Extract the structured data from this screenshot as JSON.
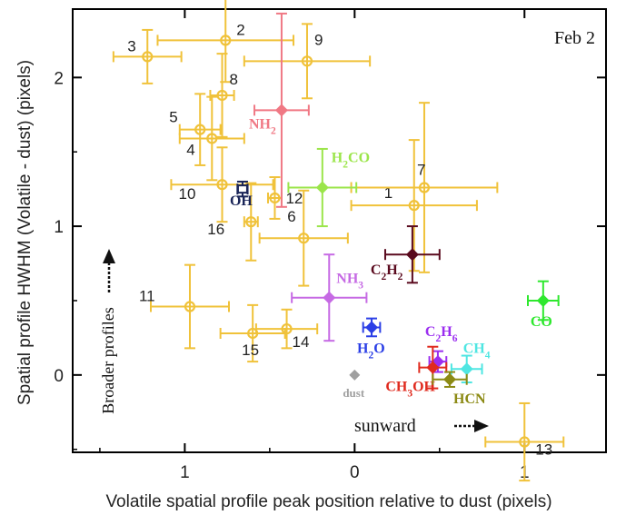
{
  "chart_data": {
    "type": "scatter",
    "panel_label": "Feb 2",
    "xlabel": "Volatile spatial profile peak position relative to dust (pixels)",
    "ylabel": "Spatial profile HWHM (Volatile - dust) (pixels)",
    "x_reversed": true,
    "xlim": [
      1.66,
      -1.48
    ],
    "ylim": [
      -0.52,
      2.46
    ],
    "x_ticks": [
      1,
      0,
      -1
    ],
    "x_tick_labels": [
      "1",
      "0",
      "1"
    ],
    "y_ticks": [
      0,
      1,
      2
    ],
    "y_tick_labels": [
      "0",
      "1",
      "2"
    ],
    "annotations": {
      "broader": "Broader profiles",
      "sunward": "sunward"
    },
    "numbered_points": [
      {
        "label": "1",
        "x": -0.35,
        "y": 1.14,
        "xerr": 0.37,
        "yerr": 0.44
      },
      {
        "label": "2",
        "x": 0.76,
        "y": 2.25,
        "xerr": 0.4,
        "yerr": 0.28
      },
      {
        "label": "3",
        "x": 1.22,
        "y": 2.14,
        "xerr": 0.2,
        "yerr": 0.18
      },
      {
        "label": "4",
        "x": 0.84,
        "y": 1.59,
        "xerr": 0.19,
        "yerr": 0.28
      },
      {
        "label": "5",
        "x": 0.91,
        "y": 1.65,
        "xerr": 0.12,
        "yerr": 0.24
      },
      {
        "label": "6",
        "x": 0.3,
        "y": 0.92,
        "xerr": 0.26,
        "yerr": 0.32
      },
      {
        "label": "7",
        "x": -0.41,
        "y": 1.26,
        "xerr": 0.43,
        "yerr": 0.57
      },
      {
        "label": "8",
        "x": 0.78,
        "y": 1.88,
        "xerr": 0.07,
        "yerr": 0.28
      },
      {
        "label": "9",
        "x": 0.28,
        "y": 2.11,
        "xerr": 0.37,
        "yerr": 0.25
      },
      {
        "label": "10",
        "x": 0.78,
        "y": 1.28,
        "xerr": 0.3,
        "yerr": 0.25
      },
      {
        "label": "11",
        "x": 0.97,
        "y": 0.46,
        "xerr": 0.23,
        "yerr": 0.28
      },
      {
        "label": "12",
        "x": 0.47,
        "y": 1.19,
        "xerr": 0.04,
        "yerr": 0.14
      },
      {
        "label": "13",
        "x": -1.0,
        "y": -0.45,
        "xerr": 0.23,
        "yerr": 0.26
      },
      {
        "label": "14",
        "x": 0.4,
        "y": 0.31,
        "xerr": 0.18,
        "yerr": 0.13
      },
      {
        "label": "15",
        "x": 0.6,
        "y": 0.28,
        "xerr": 0.19,
        "yerr": 0.19
      },
      {
        "label": "16",
        "x": 0.61,
        "y": 1.03,
        "xerr": 0.04,
        "yerr": 0.26
      }
    ],
    "molecules": [
      {
        "label": "NH2",
        "x": 0.43,
        "y": 1.78,
        "xerr": 0.16,
        "yerr": 0.65,
        "color": "#f07884"
      },
      {
        "label": "H2CO",
        "x": 0.19,
        "y": 1.26,
        "xerr": 0.2,
        "yerr": 0.26,
        "color": "#9be54a"
      },
      {
        "label": "OH",
        "x": 0.66,
        "y": 1.25,
        "xerr": 0.03,
        "yerr": 0.05,
        "color": "#1a2558"
      },
      {
        "label": "C2H2",
        "x": -0.34,
        "y": 0.81,
        "xerr": 0.16,
        "yerr": 0.19,
        "color": "#5a0a1e"
      },
      {
        "label": "NH3",
        "x": 0.15,
        "y": 0.52,
        "xerr": 0.22,
        "yerr": 0.29,
        "color": "#c66ae4"
      },
      {
        "label": "H2O",
        "x": -0.1,
        "y": 0.32,
        "xerr": 0.05,
        "yerr": 0.06,
        "color": "#2b3fe6"
      },
      {
        "label": "C2H6",
        "x": -0.49,
        "y": 0.09,
        "xerr": 0.05,
        "yerr": 0.07,
        "color": "#9b2ef0"
      },
      {
        "label": "CH3OH",
        "x": -0.46,
        "y": 0.05,
        "xerr": 0.08,
        "yerr": 0.14,
        "color": "#e02a1e"
      },
      {
        "label": "CH4",
        "x": -0.66,
        "y": 0.04,
        "xerr": 0.09,
        "yerr": 0.09,
        "color": "#4fe6e2"
      },
      {
        "label": "HCN",
        "x": -0.56,
        "y": -0.03,
        "xerr": 0.1,
        "yerr": 0.05,
        "color": "#8c8a14"
      },
      {
        "label": "CO",
        "x": -1.11,
        "y": 0.5,
        "xerr": 0.09,
        "yerr": 0.13,
        "color": "#2ee82e"
      },
      {
        "label": "dust",
        "x": 0.0,
        "y": 0.0,
        "xerr": 0,
        "yerr": 0,
        "color": "#a0a0a0"
      }
    ],
    "numbered_color": "#f0c23a"
  }
}
